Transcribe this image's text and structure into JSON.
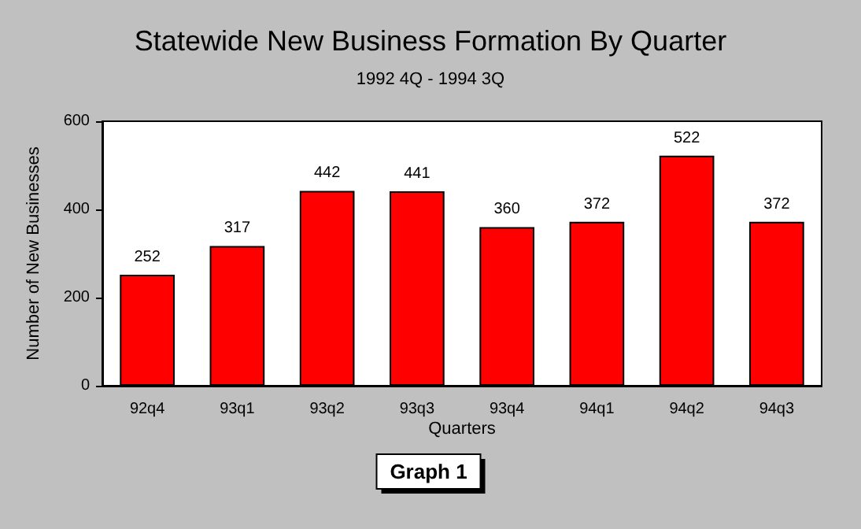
{
  "chart_data": {
    "type": "bar",
    "title": "Statewide New Business Formation By Quarter",
    "subtitle": "1992 4Q - 1994 3Q",
    "xlabel": "Quarters",
    "ylabel": "Number of New Businesses",
    "annotations": [
      "Graph 1"
    ],
    "categories": [
      "92q4",
      "93q1",
      "93q2",
      "93q3",
      "93q4",
      "94q1",
      "94q2",
      "94q3"
    ],
    "values": [
      252,
      317,
      442,
      441,
      360,
      372,
      522,
      372
    ],
    "color": "#ff0000",
    "ylim": [
      0,
      600
    ],
    "yticks": [
      0,
      200,
      400,
      600
    ],
    "grid": false,
    "data_labels": true
  }
}
